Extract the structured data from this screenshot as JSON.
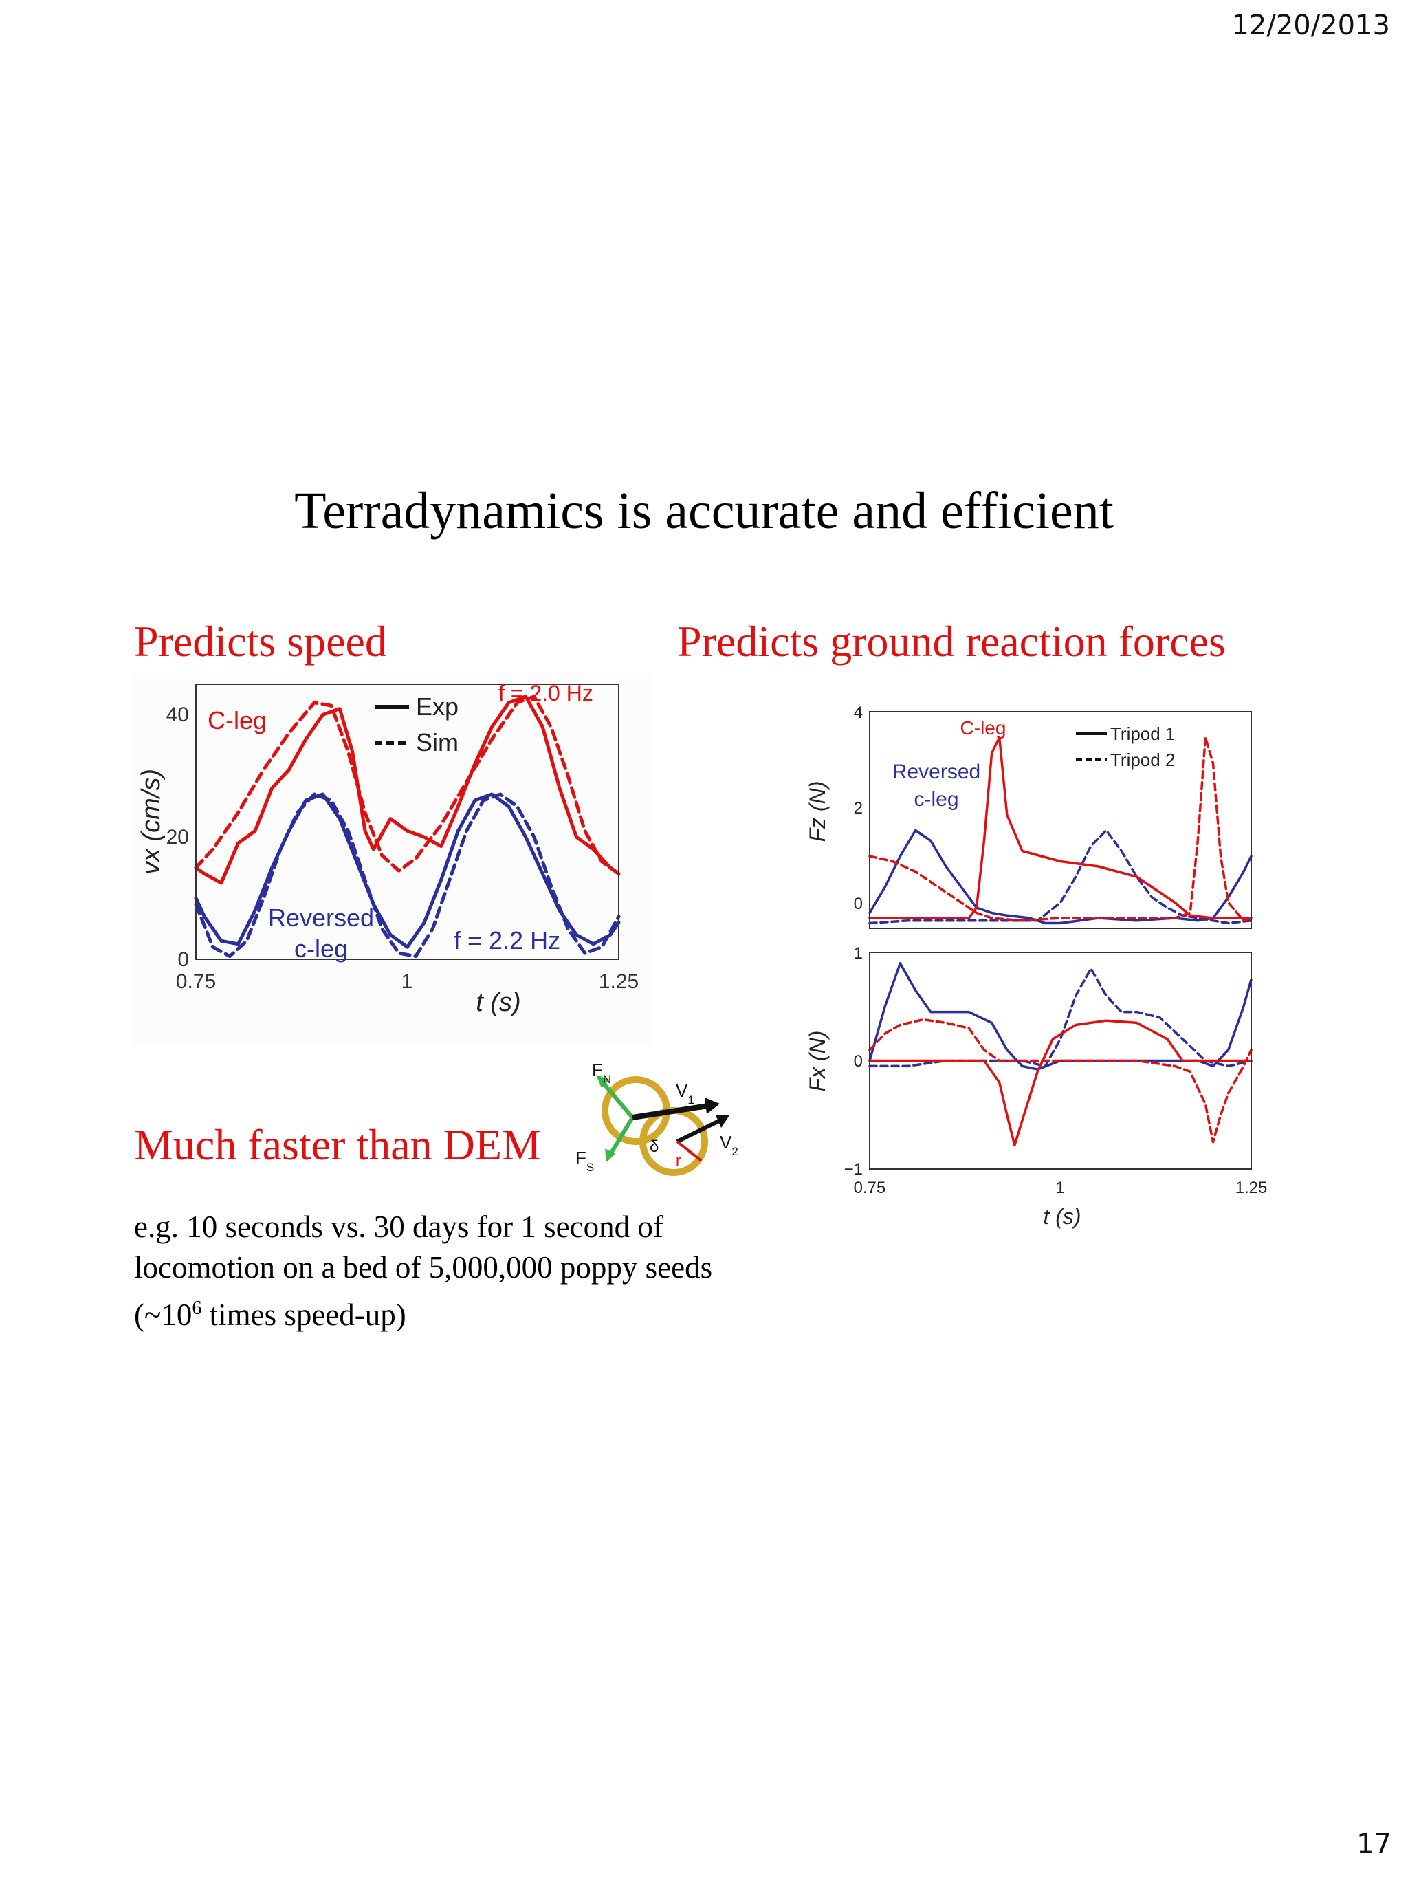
{
  "header": {
    "date": "12/20/2013"
  },
  "footer": {
    "page_number": "17"
  },
  "title": "Terradynamics is accurate and efficient",
  "left_heading": "Predicts speed",
  "right_heading": "Predicts ground reaction forces",
  "dem_heading": "Much faster than DEM",
  "body": {
    "line1": "e.g. 10 seconds vs. 30 days for 1 second of",
    "line2": "locomotion on a bed of 5,000,000 poppy seeds",
    "line3_pre": "(~10",
    "line3_sup": "6",
    "line3_post": " times speed-up)"
  },
  "colors": {
    "red": "#e01010",
    "blue": "#2b2f9c",
    "green": "#3cb44b",
    "gold": "#d4a62a"
  },
  "diagram": {
    "icon": "leg-segment-force-diagram",
    "labels": {
      "fn": "F",
      "fn_sub": "N",
      "fs": "F",
      "fs_sub": "S",
      "v1": "V",
      "v1_sub": "1",
      "v2": "V",
      "v2_sub": "2",
      "delta": "δ",
      "r": "r"
    }
  },
  "chart_data": [
    {
      "type": "line",
      "xlabel": "t (s)",
      "ylabel": "vx (cm/s)",
      "xlim": [
        0.75,
        1.25
      ],
      "ylim": [
        0,
        45
      ],
      "xticks": [
        "0.75",
        "1",
        "1.25"
      ],
      "yticks": [
        "0",
        "20",
        "40"
      ],
      "legend": {
        "position": "top-center",
        "entries": [
          "Exp",
          "Sim"
        ]
      },
      "annotations": {
        "c_leg": "C-leg",
        "reversed_1": "Reversed",
        "reversed_2": "c-leg",
        "freq_red": "f = 2.0 Hz",
        "freq_blue": "f = 2.2 Hz"
      },
      "series": [
        {
          "name": "C-leg Exp",
          "style": "solid",
          "color": "#e01010",
          "x": [
            0.75,
            0.76,
            0.78,
            0.8,
            0.82,
            0.84,
            0.86,
            0.88,
            0.9,
            0.92,
            0.935,
            0.95,
            0.96,
            0.98,
            1.0,
            1.02,
            1.04,
            1.06,
            1.08,
            1.1,
            1.12,
            1.14,
            1.16,
            1.18,
            1.2,
            1.22,
            1.24,
            1.25
          ],
          "y": [
            15,
            14,
            12.5,
            19,
            21,
            28,
            31,
            36,
            40,
            41,
            34,
            21,
            18,
            23,
            21,
            20,
            18.5,
            25,
            32,
            38,
            42,
            43,
            38,
            28,
            20,
            18,
            15,
            14
          ]
        },
        {
          "name": "C-leg Sim",
          "style": "dashed",
          "color": "#e01010",
          "x": [
            0.75,
            0.77,
            0.8,
            0.83,
            0.86,
            0.89,
            0.91,
            0.93,
            0.95,
            0.97,
            0.99,
            1.01,
            1.04,
            1.07,
            1.1,
            1.13,
            1.15,
            1.17,
            1.19,
            1.21,
            1.23,
            1.25
          ],
          "y": [
            15,
            18,
            24,
            31,
            37,
            42,
            41.5,
            34,
            24,
            17,
            14.5,
            16.5,
            22,
            29,
            36,
            42,
            43,
            38,
            30,
            21,
            16,
            14
          ]
        },
        {
          "name": "Reversed c-leg Exp",
          "style": "solid",
          "color": "#2b2f9c",
          "x": [
            0.75,
            0.76,
            0.78,
            0.8,
            0.82,
            0.84,
            0.86,
            0.88,
            0.9,
            0.92,
            0.94,
            0.96,
            0.98,
            1.0,
            1.02,
            1.04,
            1.06,
            1.08,
            1.1,
            1.12,
            1.14,
            1.16,
            1.18,
            1.2,
            1.22,
            1.24,
            1.25
          ],
          "y": [
            10,
            7,
            3,
            2.5,
            8,
            15,
            21,
            26,
            27,
            23,
            16,
            9,
            4,
            2,
            6,
            13,
            21,
            26,
            27,
            25,
            20,
            14,
            8,
            4,
            2.5,
            4,
            6
          ]
        },
        {
          "name": "Reversed c-leg Sim",
          "style": "dashed",
          "color": "#2b2f9c",
          "x": [
            0.75,
            0.77,
            0.79,
            0.81,
            0.83,
            0.85,
            0.87,
            0.89,
            0.91,
            0.93,
            0.95,
            0.97,
            0.99,
            1.01,
            1.03,
            1.05,
            1.07,
            1.09,
            1.11,
            1.13,
            1.15,
            1.17,
            1.19,
            1.21,
            1.23,
            1.25
          ],
          "y": [
            9,
            2,
            0.5,
            3,
            10,
            18,
            24,
            27,
            26,
            21,
            13,
            5,
            1,
            0.5,
            5,
            13,
            21,
            26,
            27,
            25,
            20,
            12,
            5,
            1,
            2,
            7
          ]
        }
      ]
    },
    {
      "type": "line",
      "xlabel": "",
      "ylabel": "Fz (N)",
      "xlim": [
        0.75,
        1.25
      ],
      "ylim": [
        -0.2,
        4
      ],
      "yticks": [
        "0",
        "2",
        "4"
      ],
      "legend": {
        "position": "top-right",
        "entries": [
          "Tripod 1",
          "Tripod 2"
        ]
      },
      "annotations": {
        "c_leg": "C-leg",
        "reversed_1": "Reversed",
        "reversed_2": "c-leg"
      },
      "series": [
        {
          "name": "Reversed c-leg Tripod 1",
          "style": "solid",
          "color": "#2b2f9c",
          "x": [
            0.75,
            0.77,
            0.79,
            0.81,
            0.83,
            0.85,
            0.87,
            0.89,
            0.91,
            0.93,
            0.96,
            0.98,
            1.0,
            1.05,
            1.1,
            1.15,
            1.18,
            1.2,
            1.22,
            1.24,
            1.25
          ],
          "y": [
            0.1,
            0.6,
            1.2,
            1.7,
            1.5,
            1.0,
            0.6,
            0.2,
            0.1,
            0.05,
            0.0,
            -0.1,
            -0.1,
            0.0,
            -0.05,
            0.0,
            -0.05,
            0.0,
            0.4,
            0.9,
            1.2
          ]
        },
        {
          "name": "Reversed c-leg Tripod 2",
          "style": "dashed",
          "color": "#2b2f9c",
          "x": [
            0.75,
            0.8,
            0.85,
            0.9,
            0.95,
            0.97,
            1.0,
            1.02,
            1.04,
            1.06,
            1.08,
            1.1,
            1.12,
            1.14,
            1.16,
            1.18,
            1.2,
            1.22,
            1.25
          ],
          "y": [
            -0.1,
            -0.05,
            -0.05,
            -0.05,
            -0.05,
            -0.05,
            0.3,
            0.8,
            1.4,
            1.7,
            1.3,
            0.8,
            0.4,
            0.2,
            0.05,
            0.0,
            -0.05,
            -0.1,
            -0.05
          ]
        },
        {
          "name": "C-leg Tripod 1",
          "style": "solid",
          "color": "#e01010",
          "x": [
            0.75,
            0.8,
            0.85,
            0.88,
            0.89,
            0.9,
            0.91,
            0.92,
            0.93,
            0.95,
            1.0,
            1.05,
            1.1,
            1.13,
            1.15,
            1.17,
            1.2,
            1.25
          ],
          "y": [
            0.0,
            0.0,
            0.0,
            0.0,
            0.2,
            1.5,
            3.2,
            3.5,
            2.0,
            1.3,
            1.1,
            1.0,
            0.8,
            0.5,
            0.3,
            0.05,
            0.0,
            0.0
          ]
        },
        {
          "name": "C-leg Tripod 2",
          "style": "dashed",
          "color": "#e01010",
          "x": [
            0.75,
            0.78,
            0.81,
            0.84,
            0.87,
            0.89,
            0.91,
            0.95,
            1.0,
            1.05,
            1.1,
            1.15,
            1.17,
            1.18,
            1.19,
            1.2,
            1.21,
            1.22,
            1.24,
            1.25
          ],
          "y": [
            1.2,
            1.1,
            0.9,
            0.6,
            0.3,
            0.1,
            0.0,
            -0.05,
            0.0,
            0.0,
            0.0,
            0.0,
            0.1,
            1.5,
            3.5,
            3.0,
            1.2,
            0.3,
            -0.05,
            0.0
          ]
        }
      ]
    },
    {
      "type": "line",
      "xlabel": "t (s)",
      "ylabel": "Fx (N)",
      "xlim": [
        0.75,
        1.25
      ],
      "ylim": [
        -1,
        1
      ],
      "xticks": [
        "0.75",
        "1",
        "1.25"
      ],
      "yticks": [
        "−1",
        "0",
        "1"
      ],
      "series": [
        {
          "name": "Reversed c-leg Tripod 1",
          "style": "solid",
          "color": "#2b2f9c",
          "x": [
            0.75,
            0.77,
            0.79,
            0.81,
            0.83,
            0.85,
            0.88,
            0.91,
            0.93,
            0.95,
            0.97,
            1.0,
            1.05,
            1.1,
            1.15,
            1.18,
            1.2,
            1.22,
            1.24,
            1.25
          ],
          "y": [
            0.0,
            0.5,
            0.9,
            0.65,
            0.45,
            0.45,
            0.45,
            0.35,
            0.1,
            -0.05,
            -0.08,
            0.0,
            0.0,
            0.0,
            0.0,
            0.0,
            -0.05,
            0.1,
            0.5,
            0.75
          ]
        },
        {
          "name": "Reversed c-leg Tripod 2",
          "style": "dashed",
          "color": "#2b2f9c",
          "x": [
            0.75,
            0.8,
            0.85,
            0.9,
            0.95,
            0.98,
            1.0,
            1.02,
            1.04,
            1.06,
            1.08,
            1.1,
            1.13,
            1.16,
            1.19,
            1.22,
            1.25
          ],
          "y": [
            -0.05,
            -0.05,
            0.0,
            0.0,
            0.0,
            -0.05,
            0.2,
            0.6,
            0.85,
            0.6,
            0.45,
            0.45,
            0.4,
            0.2,
            0.0,
            -0.05,
            0.0
          ]
        },
        {
          "name": "C-leg Tripod 1",
          "style": "solid",
          "color": "#e01010",
          "x": [
            0.75,
            0.8,
            0.85,
            0.9,
            0.92,
            0.93,
            0.94,
            0.95,
            0.97,
            0.99,
            1.02,
            1.06,
            1.1,
            1.14,
            1.16,
            1.18,
            1.22,
            1.25
          ],
          "y": [
            0.0,
            0.0,
            0.0,
            0.0,
            -0.2,
            -0.5,
            -0.78,
            -0.55,
            -0.1,
            0.2,
            0.33,
            0.37,
            0.35,
            0.2,
            0.0,
            0.0,
            0.0,
            0.0
          ]
        },
        {
          "name": "C-leg Tripod 2",
          "style": "dashed",
          "color": "#e01010",
          "x": [
            0.75,
            0.77,
            0.79,
            0.82,
            0.85,
            0.88,
            0.9,
            0.92,
            0.95,
            1.0,
            1.05,
            1.1,
            1.15,
            1.17,
            1.19,
            1.2,
            1.21,
            1.22,
            1.24,
            1.25
          ],
          "y": [
            0.1,
            0.25,
            0.33,
            0.38,
            0.35,
            0.3,
            0.1,
            0.0,
            0.0,
            0.0,
            0.0,
            0.0,
            -0.05,
            -0.1,
            -0.4,
            -0.75,
            -0.5,
            -0.3,
            -0.05,
            0.1
          ]
        }
      ]
    }
  ]
}
